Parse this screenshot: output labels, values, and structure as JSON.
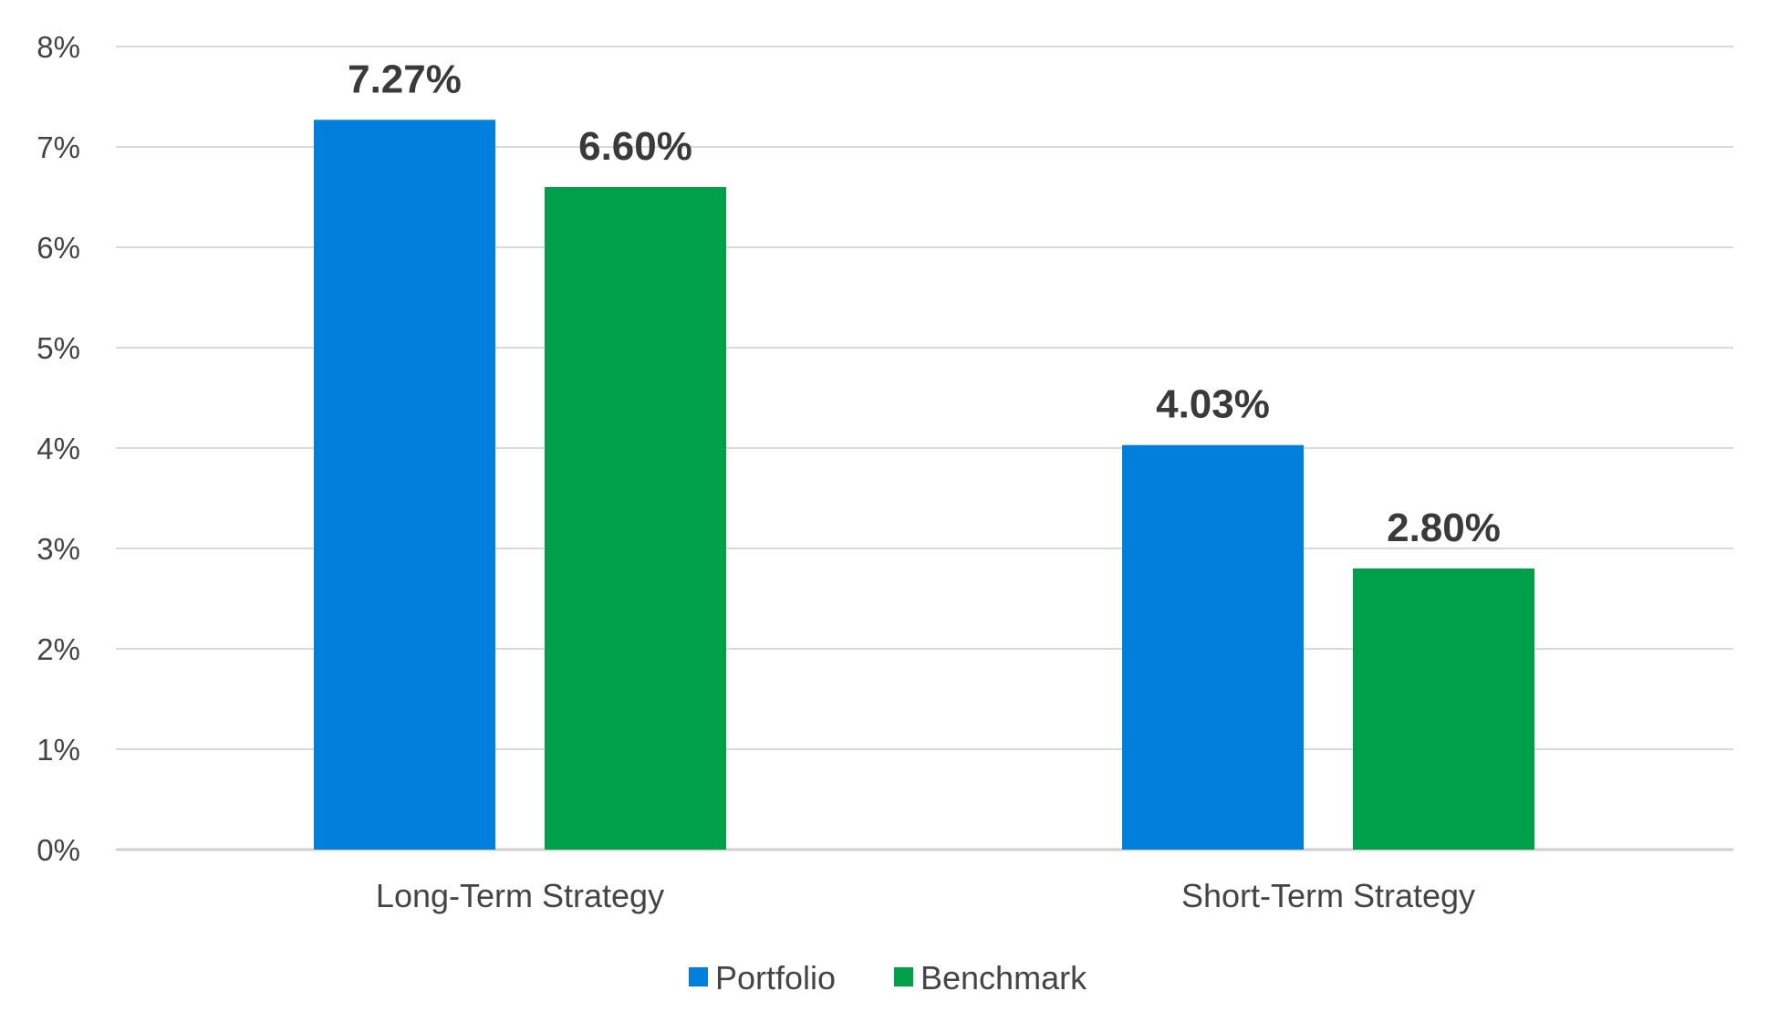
{
  "chart_data": {
    "type": "bar",
    "categories": [
      "Long-Term Strategy",
      "Short-Term Strategy"
    ],
    "series": [
      {
        "name": "Portfolio",
        "values": [
          7.27,
          4.03
        ],
        "labels": [
          "7.27%",
          "4.03%"
        ],
        "color": "#0080DC"
      },
      {
        "name": "Benchmark",
        "values": [
          6.6,
          2.8
        ],
        "labels": [
          "6.60%",
          "2.80%"
        ],
        "color": "#00A04B"
      }
    ],
    "ylim": [
      0,
      8
    ],
    "yticks": [
      0,
      1,
      2,
      3,
      4,
      5,
      6,
      7,
      8
    ],
    "ytick_labels": [
      "0%",
      "1%",
      "2%",
      "3%",
      "4%",
      "5%",
      "6%",
      "7%",
      "8%"
    ],
    "grid": true,
    "grid_color": "#D9D9D9",
    "legend": "bottom-center"
  }
}
